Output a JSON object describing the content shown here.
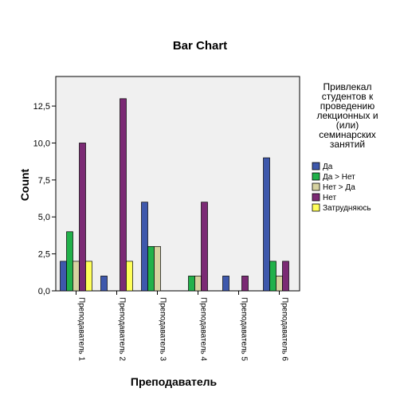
{
  "chart_data": {
    "type": "bar",
    "title": "Bar Chart",
    "xlabel": "Преподаватель",
    "ylabel": "Count",
    "ylim": [
      0,
      14.5
    ],
    "yticks": [
      "0,0",
      "2,5",
      "5,0",
      "7,5",
      "10,0",
      "12,5"
    ],
    "ytick_values": [
      0,
      2.5,
      5,
      7.5,
      10,
      12.5
    ],
    "grid": false,
    "legend_position": "right",
    "categories": [
      "Преподаватель 1",
      "Преподаватель 2",
      "Преподаватель 3",
      "Преподаватель 4",
      "Преподаватель 5",
      "Преподаватель 6"
    ],
    "legend_title_lines": [
      "Привлекал",
      "студентов к",
      "проведению",
      "лекционных и",
      "(или)",
      "семинарских",
      "занятий"
    ],
    "series": [
      {
        "name": "Да",
        "color": "#3e58ac",
        "values": [
          2,
          1,
          6,
          0,
          1,
          9
        ]
      },
      {
        "name": "Да > Нет",
        "color": "#21b14a",
        "values": [
          4,
          0,
          3,
          1,
          0,
          2
        ]
      },
      {
        "name": "Нет > Да",
        "color": "#d6d3a1",
        "values": [
          2,
          0,
          3,
          1,
          0,
          1
        ]
      },
      {
        "name": "Нет",
        "color": "#7b2a74",
        "values": [
          10,
          13,
          0,
          6,
          1,
          2
        ]
      },
      {
        "name": "Затрудняюсь",
        "color": "#ffff5a",
        "values": [
          2,
          2,
          0,
          0,
          0,
          0
        ]
      }
    ],
    "plot_background": "#f0f0f0"
  }
}
